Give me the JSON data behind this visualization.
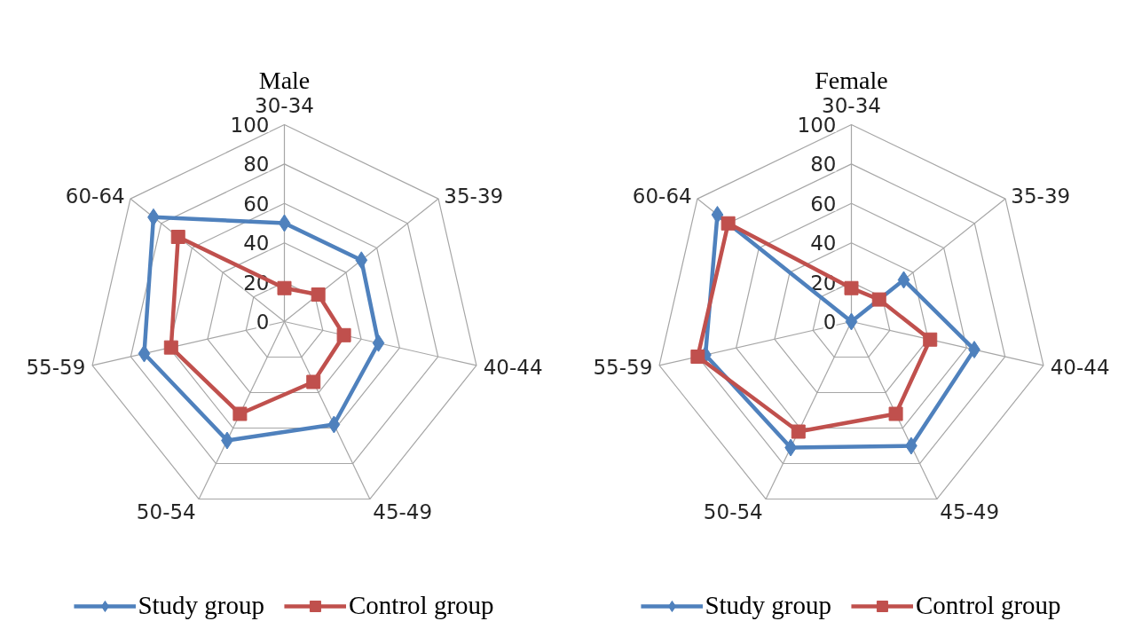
{
  "chart_data": [
    {
      "type": "radar",
      "title": "Male",
      "categories": [
        "30-34",
        "35-39",
        "40-44",
        "45-49",
        "50-54",
        "55-59",
        "60-64"
      ],
      "series": [
        {
          "name": "Study group",
          "color": "#4f81bd",
          "marker": "diamond",
          "values": [
            50,
            50,
            49,
            58,
            67,
            73,
            85
          ]
        },
        {
          "name": "Control group",
          "color": "#c0504d",
          "marker": "square",
          "values": [
            17,
            22,
            31,
            34,
            52,
            59,
            69
          ]
        }
      ],
      "ylim": [
        0,
        100
      ],
      "yticks": [
        0,
        20,
        40,
        60,
        80,
        100
      ],
      "grid": true,
      "legend": "bottom",
      "line_style": "solid"
    },
    {
      "type": "radar",
      "title": "Female",
      "categories": [
        "30-34",
        "35-39",
        "40-44",
        "45-49",
        "50-54",
        "55-59",
        "60-64"
      ],
      "series": [
        {
          "name": "Study group",
          "color": "#4f81bd",
          "marker": "diamond",
          "values": [
            0,
            34,
            64,
            70,
            71,
            76,
            87
          ]
        },
        {
          "name": "Control group",
          "color": "#c0504d",
          "marker": "square",
          "values": [
            17,
            18,
            41,
            52,
            62,
            80,
            80
          ]
        }
      ],
      "ylim": [
        0,
        100
      ],
      "yticks": [
        0,
        20,
        40,
        60,
        80,
        100
      ],
      "grid": true,
      "legend": "bottom",
      "line_style": "solid"
    }
  ]
}
